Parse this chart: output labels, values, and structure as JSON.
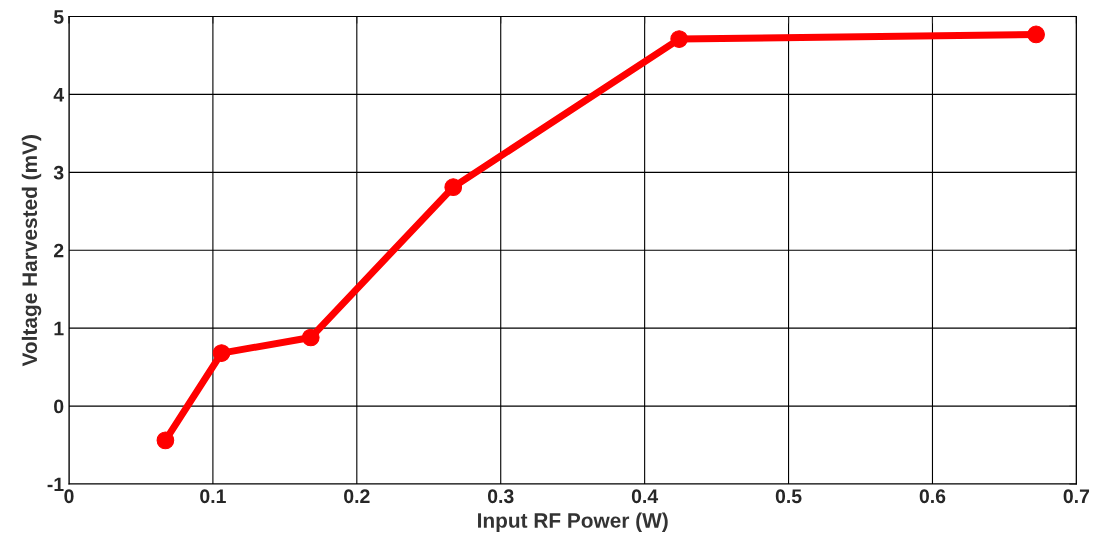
{
  "chart_data": {
    "type": "line",
    "xlabel": "Input RF Power (W)",
    "ylabel": "Voltage Harvested (mV)",
    "x": [
      0.067,
      0.106,
      0.168,
      0.267,
      0.424,
      0.672
    ],
    "series": [
      {
        "color": "#ff0000",
        "values": [
          -0.44,
          0.68,
          0.88,
          2.81,
          4.71,
          4.77
        ]
      }
    ],
    "xlim": [
      0,
      0.7
    ],
    "xticks": [
      0,
      0.1,
      0.2,
      0.3,
      0.4,
      0.5,
      0.6,
      0.7
    ],
    "ylim": [
      -1,
      5
    ],
    "yticks": [
      -1,
      0,
      1,
      2,
      3,
      4,
      5
    ],
    "grid": true,
    "marker": "circle",
    "line_style": "solid"
  }
}
